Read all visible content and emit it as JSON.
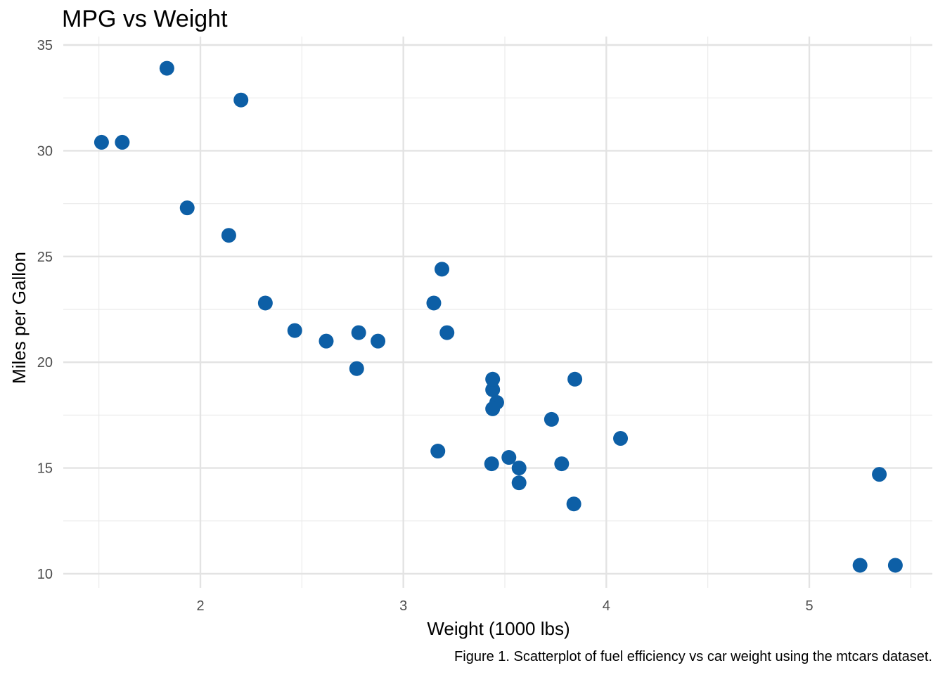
{
  "chart_data": {
    "type": "scatter",
    "title": "MPG vs Weight",
    "xlabel": "Weight (1000 lbs)",
    "ylabel": "Miles per Gallon",
    "caption": "Figure 1. Scatterplot of fuel efficiency vs car weight using the mtcars dataset.",
    "xlim": [
      1.35,
      5.6
    ],
    "ylim": [
      9.3,
      35.0
    ],
    "x_ticks": [
      2,
      3,
      4,
      5
    ],
    "y_ticks": [
      10,
      15,
      20,
      25,
      30,
      35
    ],
    "grid": true,
    "legend": "none",
    "point_color": "#0d5fa6",
    "points": [
      {
        "x": 2.62,
        "y": 21.0
      },
      {
        "x": 2.875,
        "y": 21.0
      },
      {
        "x": 2.32,
        "y": 22.8
      },
      {
        "x": 3.215,
        "y": 21.4
      },
      {
        "x": 3.44,
        "y": 18.7
      },
      {
        "x": 3.46,
        "y": 18.1
      },
      {
        "x": 3.57,
        "y": 14.3
      },
      {
        "x": 3.19,
        "y": 24.4
      },
      {
        "x": 3.15,
        "y": 22.8
      },
      {
        "x": 3.44,
        "y": 19.2
      },
      {
        "x": 3.44,
        "y": 17.8
      },
      {
        "x": 4.07,
        "y": 16.4
      },
      {
        "x": 3.73,
        "y": 17.3
      },
      {
        "x": 3.78,
        "y": 15.2
      },
      {
        "x": 5.25,
        "y": 10.4
      },
      {
        "x": 5.424,
        "y": 10.4
      },
      {
        "x": 5.345,
        "y": 14.7
      },
      {
        "x": 2.2,
        "y": 32.4
      },
      {
        "x": 1.615,
        "y": 30.4
      },
      {
        "x": 1.835,
        "y": 33.9
      },
      {
        "x": 2.465,
        "y": 21.5
      },
      {
        "x": 3.52,
        "y": 15.5
      },
      {
        "x": 3.435,
        "y": 15.2
      },
      {
        "x": 3.84,
        "y": 13.3
      },
      {
        "x": 3.845,
        "y": 19.2
      },
      {
        "x": 1.935,
        "y": 27.3
      },
      {
        "x": 2.14,
        "y": 26.0
      },
      {
        "x": 1.513,
        "y": 30.4
      },
      {
        "x": 3.17,
        "y": 15.8
      },
      {
        "x": 2.77,
        "y": 19.7
      },
      {
        "x": 3.57,
        "y": 15.0
      },
      {
        "x": 2.78,
        "y": 21.4
      }
    ]
  }
}
